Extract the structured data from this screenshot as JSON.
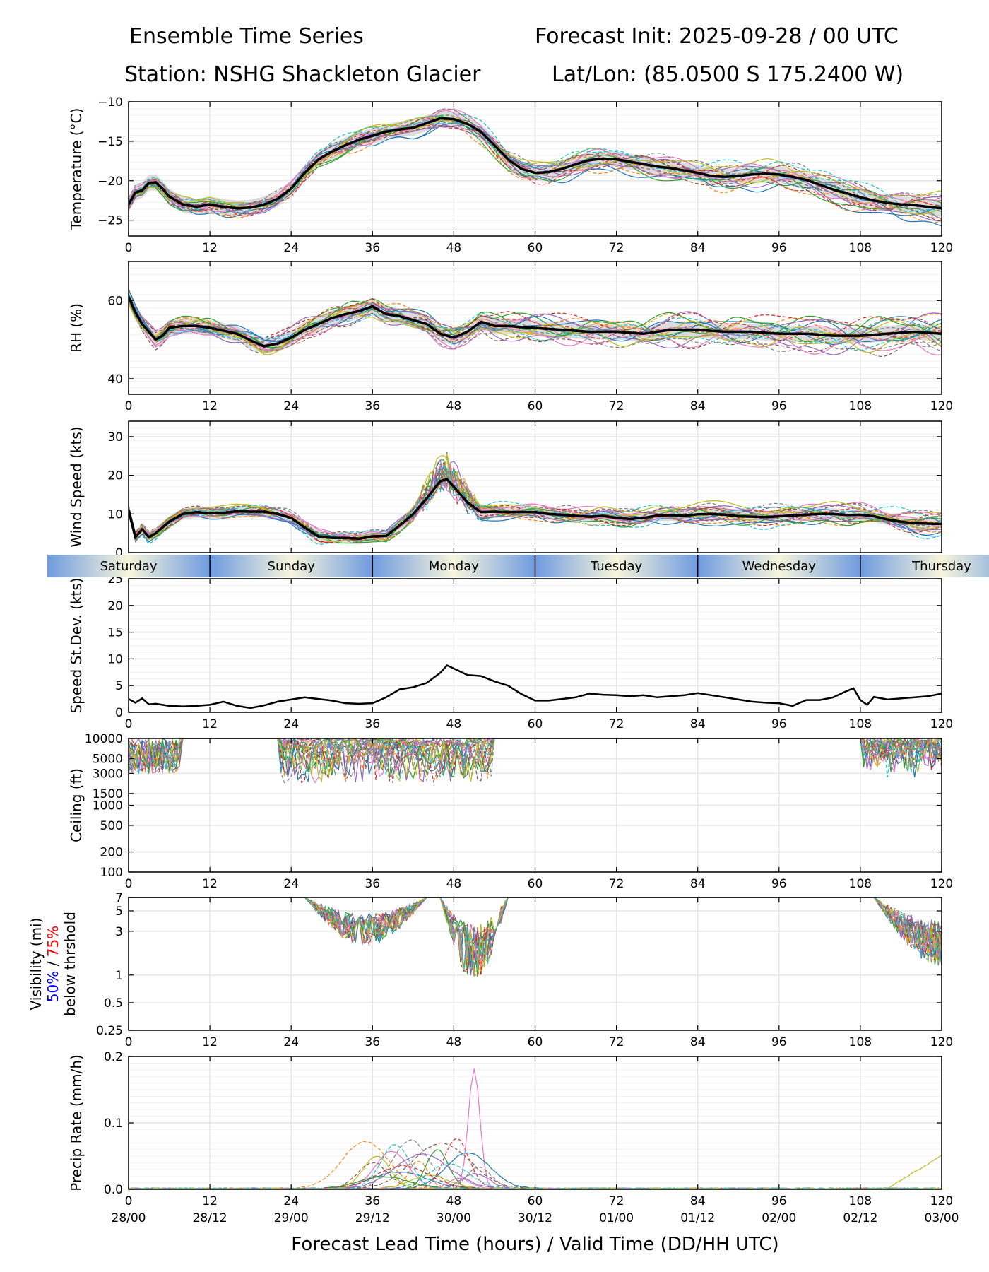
{
  "header": {
    "title_left": "Ensemble Time Series",
    "title_right": "Forecast Init: 2025-09-28 / 00 UTC",
    "station": "Station: NSHG Shackleton Glacier",
    "latlon": "Lat/Lon: (85.0500 S 175.2400 W)"
  },
  "colors": {
    "mean_line": "#000000",
    "spread_band": "#d3d3d3",
    "grid": "#e6e6e6",
    "day_band_a": "#6f9be0",
    "day_band_b": "#f7f5dc",
    "vis_50": "#0000ff",
    "vis_75": "#ff0000",
    "members": [
      "#1f77b4",
      "#ff7f0e",
      "#2ca02c",
      "#d62728",
      "#9467bd",
      "#8c564b",
      "#e377c2",
      "#7f7f7f",
      "#bcbd22",
      "#17becf"
    ]
  },
  "chart_data": {
    "type": "line",
    "description_x": "Forecast lead time (hours)",
    "x_ticks": [
      0,
      12,
      24,
      36,
      48,
      60,
      72,
      84,
      96,
      108,
      120
    ],
    "x_tick_labels": [
      "0",
      "12",
      "24",
      "36",
      "48",
      "60",
      "72",
      "84",
      "96",
      "108",
      "120"
    ],
    "valid_time_labels": [
      "28/00",
      "28/12",
      "29/00",
      "29/12",
      "30/00",
      "30/12",
      "01/00",
      "01/12",
      "02/00",
      "02/12",
      "03/00"
    ],
    "xlabel": "Forecast Lead Time (hours) / Valid Time (DD/HH UTC)",
    "day_labels": [
      "Saturday",
      "Sunday",
      "Monday",
      "Tuesday",
      "Wednesday",
      "Thursday"
    ],
    "day_boundaries": [
      12,
      36,
      60,
      84,
      108
    ],
    "panels": [
      {
        "id": "temperature",
        "ylabel": "Temperature (°C)",
        "ylim": [
          -27,
          -10
        ],
        "yticks": [
          -25,
          -20,
          -15,
          -10
        ],
        "ytick_labels": [
          "−25",
          "−20",
          "−15",
          "−10"
        ],
        "scale": "linear",
        "mean": [
          [
            0,
            -23
          ],
          [
            1,
            -21.5
          ],
          [
            2,
            -21.2
          ],
          [
            3,
            -20.3
          ],
          [
            4,
            -20.2
          ],
          [
            5,
            -21
          ],
          [
            6,
            -22
          ],
          [
            8,
            -23
          ],
          [
            10,
            -23.3
          ],
          [
            12,
            -23
          ],
          [
            14,
            -23.3
          ],
          [
            16,
            -23.5
          ],
          [
            18,
            -23.4
          ],
          [
            20,
            -23
          ],
          [
            22,
            -22.3
          ],
          [
            24,
            -21
          ],
          [
            26,
            -19
          ],
          [
            28,
            -17.3
          ],
          [
            30,
            -16.3
          ],
          [
            32,
            -15.5
          ],
          [
            34,
            -14.8
          ],
          [
            36,
            -14.3
          ],
          [
            38,
            -13.8
          ],
          [
            40,
            -13.5
          ],
          [
            42,
            -13.3
          ],
          [
            44,
            -12.7
          ],
          [
            46,
            -12.1
          ],
          [
            48,
            -12.2
          ],
          [
            50,
            -12.8
          ],
          [
            52,
            -13.8
          ],
          [
            54,
            -15.5
          ],
          [
            56,
            -17.3
          ],
          [
            58,
            -18.5
          ],
          [
            60,
            -19
          ],
          [
            62,
            -18.9
          ],
          [
            64,
            -18.5
          ],
          [
            66,
            -17.9
          ],
          [
            68,
            -17.4
          ],
          [
            70,
            -17.2
          ],
          [
            72,
            -17.3
          ],
          [
            74,
            -17.6
          ],
          [
            76,
            -17.9
          ],
          [
            78,
            -18.2
          ],
          [
            80,
            -18.4
          ],
          [
            82,
            -18.7
          ],
          [
            84,
            -19
          ],
          [
            86,
            -19.4
          ],
          [
            88,
            -19.5
          ],
          [
            90,
            -19.4
          ],
          [
            92,
            -19.2
          ],
          [
            94,
            -19.1
          ],
          [
            96,
            -19.2
          ],
          [
            98,
            -19.5
          ],
          [
            100,
            -19.9
          ],
          [
            102,
            -20.5
          ],
          [
            104,
            -21.1
          ],
          [
            106,
            -21.6
          ],
          [
            108,
            -22.1
          ],
          [
            110,
            -22.5
          ],
          [
            112,
            -22.8
          ],
          [
            114,
            -23
          ],
          [
            116,
            -23.1
          ],
          [
            118,
            -23.3
          ],
          [
            120,
            -23.5
          ]
        ],
        "spread": 1.0,
        "member_amplitude": 1.4
      },
      {
        "id": "rh",
        "ylabel": "RH (%)",
        "ylim": [
          36,
          70
        ],
        "yticks": [
          40,
          60
        ],
        "ytick_labels": [
          "40",
          "60"
        ],
        "scale": "linear",
        "mean": [
          [
            0,
            61
          ],
          [
            1,
            57
          ],
          [
            2,
            54
          ],
          [
            3,
            52
          ],
          [
            4,
            50
          ],
          [
            5,
            51
          ],
          [
            6,
            53
          ],
          [
            8,
            53.5
          ],
          [
            10,
            53.5
          ],
          [
            12,
            53
          ],
          [
            14,
            52.3
          ],
          [
            16,
            51.5
          ],
          [
            18,
            49.8
          ],
          [
            20,
            48.3
          ],
          [
            22,
            49
          ],
          [
            24,
            50.5
          ],
          [
            26,
            52.5
          ],
          [
            28,
            54
          ],
          [
            30,
            55.5
          ],
          [
            32,
            56.5
          ],
          [
            34,
            57.3
          ],
          [
            36,
            58.5
          ],
          [
            38,
            56.5
          ],
          [
            40,
            56
          ],
          [
            42,
            55
          ],
          [
            44,
            54
          ],
          [
            46,
            51.5
          ],
          [
            48,
            50.5
          ],
          [
            50,
            52
          ],
          [
            52,
            54.5
          ],
          [
            54,
            53.5
          ],
          [
            56,
            53.5
          ],
          [
            58,
            53.2
          ],
          [
            60,
            53
          ],
          [
            64,
            52.5
          ],
          [
            68,
            52
          ],
          [
            72,
            52
          ],
          [
            76,
            51.5
          ],
          [
            80,
            52.5
          ],
          [
            84,
            52.5
          ],
          [
            88,
            52
          ],
          [
            92,
            52
          ],
          [
            96,
            51.5
          ],
          [
            100,
            51.5
          ],
          [
            104,
            51
          ],
          [
            108,
            51
          ],
          [
            112,
            51.5
          ],
          [
            116,
            52
          ],
          [
            120,
            51.5
          ]
        ],
        "spread": 2.0,
        "member_amplitude": 3.2
      },
      {
        "id": "wind",
        "ylabel": "Wind Speed (kts)",
        "ylim": [
          0,
          34
        ],
        "yticks": [
          0,
          10,
          20,
          30
        ],
        "ytick_labels": [
          "0",
          "10",
          "20",
          "30"
        ],
        "scale": "linear",
        "mean": [
          [
            0,
            11
          ],
          [
            1,
            4
          ],
          [
            2,
            6
          ],
          [
            3,
            4
          ],
          [
            4,
            5
          ],
          [
            6,
            8
          ],
          [
            8,
            10
          ],
          [
            10,
            10.5
          ],
          [
            12,
            10.2
          ],
          [
            14,
            10.3
          ],
          [
            16,
            10.7
          ],
          [
            18,
            10.6
          ],
          [
            20,
            10.6
          ],
          [
            22,
            10
          ],
          [
            24,
            9
          ],
          [
            26,
            6.5
          ],
          [
            28,
            4.2
          ],
          [
            30,
            3.8
          ],
          [
            32,
            3.8
          ],
          [
            34,
            3.6
          ],
          [
            36,
            4.2
          ],
          [
            38,
            4.3
          ],
          [
            40,
            7
          ],
          [
            42,
            10
          ],
          [
            44,
            14
          ],
          [
            46,
            18.5
          ],
          [
            47,
            19
          ],
          [
            48,
            17
          ],
          [
            50,
            13
          ],
          [
            52,
            10.5
          ],
          [
            54,
            10.6
          ],
          [
            56,
            10.5
          ],
          [
            58,
            10.5
          ],
          [
            60,
            10.5
          ],
          [
            62,
            10
          ],
          [
            64,
            9.8
          ],
          [
            66,
            9.5
          ],
          [
            68,
            9.3
          ],
          [
            70,
            9.5
          ],
          [
            72,
            9
          ],
          [
            74,
            8.7
          ],
          [
            76,
            9
          ],
          [
            78,
            9.6
          ],
          [
            80,
            9.7
          ],
          [
            82,
            9.5
          ],
          [
            84,
            9.9
          ],
          [
            86,
            10
          ],
          [
            88,
            9.8
          ],
          [
            90,
            9.4
          ],
          [
            92,
            9.3
          ],
          [
            94,
            9.2
          ],
          [
            96,
            9.4
          ],
          [
            98,
            9.6
          ],
          [
            100,
            9.8
          ],
          [
            102,
            10
          ],
          [
            104,
            10
          ],
          [
            106,
            9.7
          ],
          [
            108,
            9.8
          ],
          [
            110,
            9.4
          ],
          [
            112,
            8.6
          ],
          [
            114,
            8
          ],
          [
            116,
            7.6
          ],
          [
            118,
            7.5
          ],
          [
            120,
            7.4
          ]
        ],
        "spread": 1.5,
        "member_amplitude": 2.2
      },
      {
        "id": "speed_stdev",
        "ylabel": "Speed St.Dev. (kts)",
        "ylim": [
          0,
          25
        ],
        "yticks": [
          0,
          5,
          10,
          15,
          20,
          25
        ],
        "ytick_labels": [
          "0",
          "5",
          "10",
          "15",
          "20",
          "25"
        ],
        "scale": "linear",
        "mean": [
          [
            0,
            2.5
          ],
          [
            1,
            1.8
          ],
          [
            2,
            2.6
          ],
          [
            3,
            1.5
          ],
          [
            4,
            1.6
          ],
          [
            6,
            1.2
          ],
          [
            8,
            1.1
          ],
          [
            10,
            1.2
          ],
          [
            12,
            1.4
          ],
          [
            14,
            2
          ],
          [
            16,
            1.2
          ],
          [
            18,
            0.8
          ],
          [
            20,
            1.3
          ],
          [
            22,
            2
          ],
          [
            24,
            2.4
          ],
          [
            26,
            2.8
          ],
          [
            28,
            2.5
          ],
          [
            30,
            2.2
          ],
          [
            32,
            1.7
          ],
          [
            34,
            1.6
          ],
          [
            36,
            1.7
          ],
          [
            38,
            2.8
          ],
          [
            40,
            4.3
          ],
          [
            42,
            4.7
          ],
          [
            44,
            5.5
          ],
          [
            46,
            7.4
          ],
          [
            47,
            8.8
          ],
          [
            48,
            8.2
          ],
          [
            50,
            7
          ],
          [
            52,
            6.8
          ],
          [
            54,
            5.8
          ],
          [
            56,
            5
          ],
          [
            58,
            3.4
          ],
          [
            60,
            2.2
          ],
          [
            62,
            2.2
          ],
          [
            64,
            2.5
          ],
          [
            66,
            2.8
          ],
          [
            68,
            3.5
          ],
          [
            70,
            3.3
          ],
          [
            72,
            3.2
          ],
          [
            74,
            3
          ],
          [
            76,
            3.2
          ],
          [
            78,
            2.8
          ],
          [
            80,
            3
          ],
          [
            82,
            3.2
          ],
          [
            84,
            3.6
          ],
          [
            86,
            3.2
          ],
          [
            88,
            2.8
          ],
          [
            90,
            2.4
          ],
          [
            92,
            2
          ],
          [
            94,
            1.8
          ],
          [
            96,
            1.7
          ],
          [
            98,
            1.2
          ],
          [
            100,
            2.3
          ],
          [
            102,
            2.3
          ],
          [
            104,
            2.8
          ],
          [
            106,
            4
          ],
          [
            107,
            4.5
          ],
          [
            108,
            2.3
          ],
          [
            109,
            1.4
          ],
          [
            110,
            2.9
          ],
          [
            112,
            2.4
          ],
          [
            114,
            2.6
          ],
          [
            116,
            2.8
          ],
          [
            118,
            3
          ],
          [
            120,
            3.5
          ]
        ],
        "spread": 0,
        "member_amplitude": 0
      },
      {
        "id": "ceiling",
        "ylabel": "Ceiling (ft)",
        "ylim": [
          100,
          10000
        ],
        "yticks": [
          100,
          200,
          500,
          1000,
          1500,
          3000,
          5000,
          10000
        ],
        "ytick_labels": [
          "100",
          "200",
          "500",
          "1000",
          "1500",
          "3000",
          "5000",
          "10000"
        ],
        "scale": "log",
        "mean": [],
        "spread": 0,
        "member_amplitude": 0
      },
      {
        "id": "visibility",
        "ylabel_line1": "Visibility (mi)",
        "ylabel_50": "50%",
        "ylabel_sep": " / ",
        "ylabel_75": "75%",
        "ylabel_line3": "below thrshold",
        "ylim": [
          0.25,
          7
        ],
        "yticks": [
          0.25,
          0.5,
          1,
          3,
          5,
          7
        ],
        "ytick_labels": [
          "0.25",
          "0.5",
          "1",
          "3",
          "5",
          "7"
        ],
        "scale": "log",
        "mean": [],
        "spread": 0,
        "member_amplitude": 0
      },
      {
        "id": "precip",
        "ylabel": "Precip Rate (mm/h)",
        "ylim": [
          0,
          0.2
        ],
        "yticks": [
          0,
          0.1,
          0.2
        ],
        "ytick_labels": [
          "0.0",
          "0.1",
          "0.2"
        ],
        "scale": "linear",
        "mean": [],
        "spread": 0,
        "member_amplitude": 0
      }
    ],
    "members_count": 20
  }
}
